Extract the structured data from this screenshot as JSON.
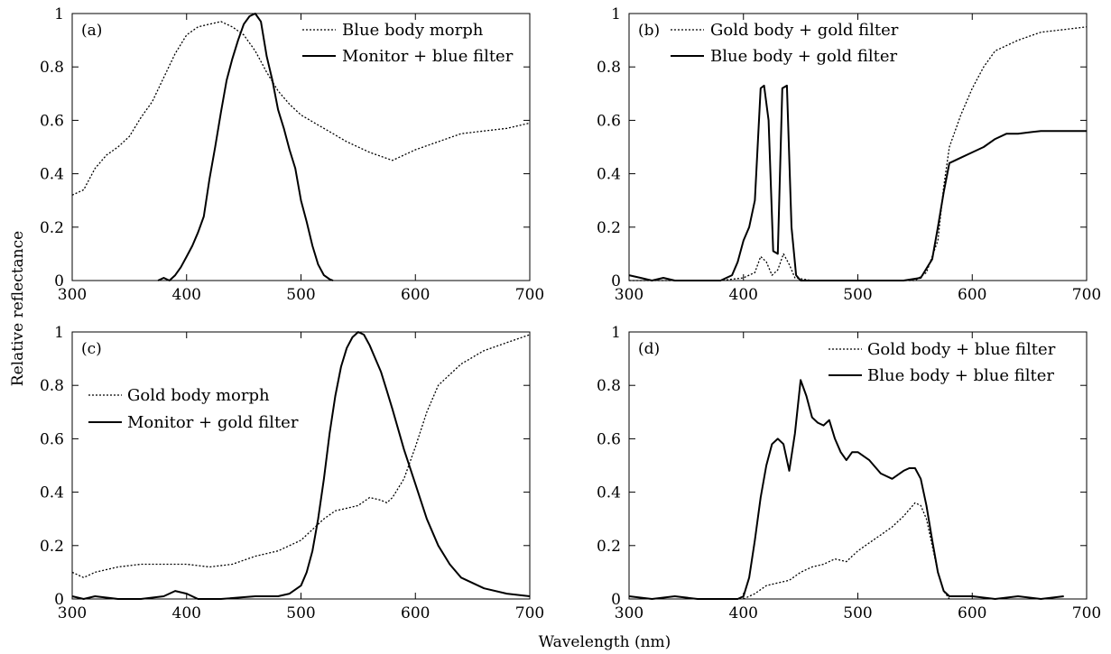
{
  "figure": {
    "xlabel": "Wavelength (nm)",
    "ylabel": "Relative reflectance"
  },
  "chart_data": [
    {
      "type": "line",
      "panel_label": "(a)",
      "xlim": [
        300,
        700
      ],
      "ylim": [
        0,
        1
      ],
      "xticks": [
        300,
        400,
        500,
        600,
        700
      ],
      "yticks": [
        0,
        0.2,
        0.4,
        0.6,
        0.8,
        1
      ],
      "ytick_labels": [
        "0",
        "0.2",
        "0.4",
        "0.6",
        "0.8",
        "1"
      ],
      "legend_position": "top-right",
      "series": [
        {
          "name": "Blue body morph",
          "style": "dotted",
          "x": [
            300,
            310,
            320,
            330,
            340,
            350,
            360,
            370,
            380,
            390,
            400,
            410,
            420,
            430,
            440,
            450,
            460,
            470,
            480,
            490,
            500,
            520,
            540,
            560,
            580,
            600,
            620,
            640,
            660,
            680,
            700
          ],
          "y": [
            0.32,
            0.34,
            0.42,
            0.47,
            0.5,
            0.54,
            0.61,
            0.67,
            0.76,
            0.85,
            0.92,
            0.95,
            0.96,
            0.97,
            0.95,
            0.92,
            0.86,
            0.78,
            0.71,
            0.66,
            0.62,
            0.57,
            0.52,
            0.48,
            0.45,
            0.49,
            0.52,
            0.55,
            0.56,
            0.57,
            0.59
          ]
        },
        {
          "name": "Monitor + blue filter",
          "style": "solid",
          "x": [
            375,
            380,
            385,
            390,
            395,
            400,
            405,
            410,
            415,
            420,
            425,
            430,
            435,
            440,
            445,
            450,
            455,
            460,
            465,
            470,
            475,
            480,
            485,
            490,
            495,
            500,
            505,
            510,
            515,
            520,
            525,
            528
          ],
          "y": [
            0,
            0.01,
            0,
            0.02,
            0.05,
            0.09,
            0.13,
            0.18,
            0.24,
            0.38,
            0.5,
            0.63,
            0.75,
            0.83,
            0.9,
            0.96,
            0.99,
            1,
            0.97,
            0.84,
            0.75,
            0.64,
            0.57,
            0.49,
            0.42,
            0.3,
            0.22,
            0.13,
            0.06,
            0.02,
            0.005,
            0
          ]
        }
      ]
    },
    {
      "type": "line",
      "panel_label": "(b)",
      "xlim": [
        300,
        700
      ],
      "ylim": [
        0,
        1
      ],
      "xticks": [
        300,
        400,
        500,
        600,
        700
      ],
      "yticks": [
        0,
        0.2,
        0.4,
        0.6,
        0.8,
        1
      ],
      "ytick_labels": [
        "0",
        "0.2",
        "0.4",
        "0.6",
        "0.8",
        "1"
      ],
      "legend_position": "top-center",
      "series": [
        {
          "name": "Gold body + gold filter",
          "style": "dotted",
          "x": [
            300,
            380,
            400,
            410,
            415,
            420,
            425,
            430,
            435,
            440,
            445,
            460,
            550,
            560,
            570,
            575,
            580,
            590,
            600,
            610,
            620,
            640,
            660,
            680,
            700
          ],
          "y": [
            0,
            0,
            0.01,
            0.03,
            0.09,
            0.07,
            0.02,
            0.04,
            0.1,
            0.06,
            0.01,
            0,
            0,
            0.03,
            0.15,
            0.35,
            0.5,
            0.62,
            0.72,
            0.8,
            0.86,
            0.9,
            0.93,
            0.94,
            0.95
          ]
        },
        {
          "name": "Blue body + gold filter",
          "style": "solid",
          "x": [
            300,
            310,
            320,
            330,
            340,
            360,
            380,
            390,
            395,
            400,
            405,
            410,
            415,
            418,
            422,
            426,
            430,
            434,
            438,
            442,
            446,
            450,
            460,
            540,
            555,
            565,
            570,
            575,
            580,
            590,
            600,
            610,
            620,
            630,
            640,
            660,
            680,
            700
          ],
          "y": [
            0.02,
            0.01,
            0,
            0.01,
            0,
            0,
            0,
            0.02,
            0.07,
            0.15,
            0.2,
            0.3,
            0.72,
            0.73,
            0.6,
            0.11,
            0.1,
            0.72,
            0.73,
            0.2,
            0.02,
            0,
            0,
            0,
            0.01,
            0.08,
            0.2,
            0.33,
            0.44,
            0.46,
            0.48,
            0.5,
            0.53,
            0.55,
            0.55,
            0.56,
            0.56,
            0.56
          ]
        }
      ]
    },
    {
      "type": "line",
      "panel_label": "(c)",
      "xlim": [
        300,
        700
      ],
      "ylim": [
        0,
        1
      ],
      "xticks": [
        300,
        400,
        500,
        600,
        700
      ],
      "yticks": [
        0,
        0.2,
        0.4,
        0.6,
        0.8,
        1
      ],
      "ytick_labels": [
        "0",
        "0.2",
        "0.4",
        "0.6",
        "0.8",
        "1"
      ],
      "legend_position": "middle-left",
      "series": [
        {
          "name": "Gold body morph",
          "style": "dotted",
          "x": [
            300,
            310,
            320,
            340,
            360,
            380,
            400,
            420,
            440,
            460,
            480,
            500,
            510,
            520,
            530,
            540,
            550,
            560,
            570,
            575,
            580,
            590,
            600,
            610,
            620,
            640,
            660,
            680,
            700
          ],
          "y": [
            0.1,
            0.08,
            0.1,
            0.12,
            0.13,
            0.13,
            0.13,
            0.12,
            0.13,
            0.16,
            0.18,
            0.22,
            0.26,
            0.3,
            0.33,
            0.34,
            0.35,
            0.38,
            0.37,
            0.36,
            0.38,
            0.45,
            0.57,
            0.7,
            0.8,
            0.88,
            0.93,
            0.96,
            0.99
          ]
        },
        {
          "name": "Monitor + gold filter",
          "style": "solid",
          "x": [
            300,
            310,
            320,
            340,
            360,
            380,
            390,
            400,
            410,
            430,
            460,
            480,
            490,
            500,
            505,
            510,
            515,
            520,
            525,
            530,
            535,
            540,
            545,
            550,
            555,
            560,
            565,
            570,
            575,
            580,
            590,
            600,
            610,
            620,
            630,
            640,
            660,
            680,
            700
          ],
          "y": [
            0.01,
            0,
            0.01,
            0,
            0,
            0.01,
            0.03,
            0.02,
            0,
            0,
            0.01,
            0.01,
            0.02,
            0.05,
            0.1,
            0.18,
            0.3,
            0.45,
            0.62,
            0.76,
            0.87,
            0.94,
            0.98,
            1,
            0.99,
            0.95,
            0.9,
            0.85,
            0.78,
            0.71,
            0.56,
            0.43,
            0.3,
            0.2,
            0.13,
            0.08,
            0.04,
            0.02,
            0.01
          ]
        }
      ]
    },
    {
      "type": "line",
      "panel_label": "(d)",
      "xlim": [
        300,
        700
      ],
      "ylim": [
        0,
        1
      ],
      "xticks": [
        300,
        400,
        500,
        600,
        700
      ],
      "yticks": [
        0,
        0.2,
        0.4,
        0.6,
        0.8,
        1
      ],
      "ytick_labels": [
        "0",
        "0.2",
        "0.4",
        "0.6",
        "0.8",
        "1"
      ],
      "legend_position": "top-right",
      "series": [
        {
          "name": "Gold body + blue filter",
          "style": "dotted",
          "x": [
            400,
            410,
            420,
            430,
            440,
            450,
            460,
            470,
            480,
            490,
            500,
            510,
            520,
            530,
            540,
            550,
            555,
            560,
            565,
            570,
            575,
            580
          ],
          "y": [
            0,
            0.02,
            0.05,
            0.06,
            0.07,
            0.1,
            0.12,
            0.13,
            0.15,
            0.14,
            0.18,
            0.21,
            0.24,
            0.27,
            0.31,
            0.36,
            0.35,
            0.3,
            0.2,
            0.1,
            0.03,
            0
          ]
        },
        {
          "name": "Blue body + blue filter",
          "style": "solid",
          "x": [
            300,
            320,
            340,
            360,
            380,
            395,
            400,
            405,
            410,
            415,
            420,
            425,
            430,
            435,
            440,
            445,
            450,
            455,
            460,
            465,
            470,
            475,
            480,
            485,
            490,
            495,
            500,
            510,
            520,
            530,
            540,
            545,
            550,
            555,
            560,
            565,
            570,
            575,
            580,
            600,
            620,
            640,
            660,
            680
          ],
          "y": [
            0.01,
            0,
            0.01,
            0,
            0,
            0,
            0.01,
            0.08,
            0.22,
            0.38,
            0.5,
            0.58,
            0.6,
            0.58,
            0.48,
            0.62,
            0.82,
            0.76,
            0.68,
            0.66,
            0.65,
            0.67,
            0.6,
            0.55,
            0.52,
            0.55,
            0.55,
            0.52,
            0.47,
            0.45,
            0.48,
            0.49,
            0.49,
            0.45,
            0.35,
            0.22,
            0.1,
            0.03,
            0.01,
            0.01,
            0,
            0.01,
            0,
            0.01
          ]
        }
      ]
    }
  ]
}
